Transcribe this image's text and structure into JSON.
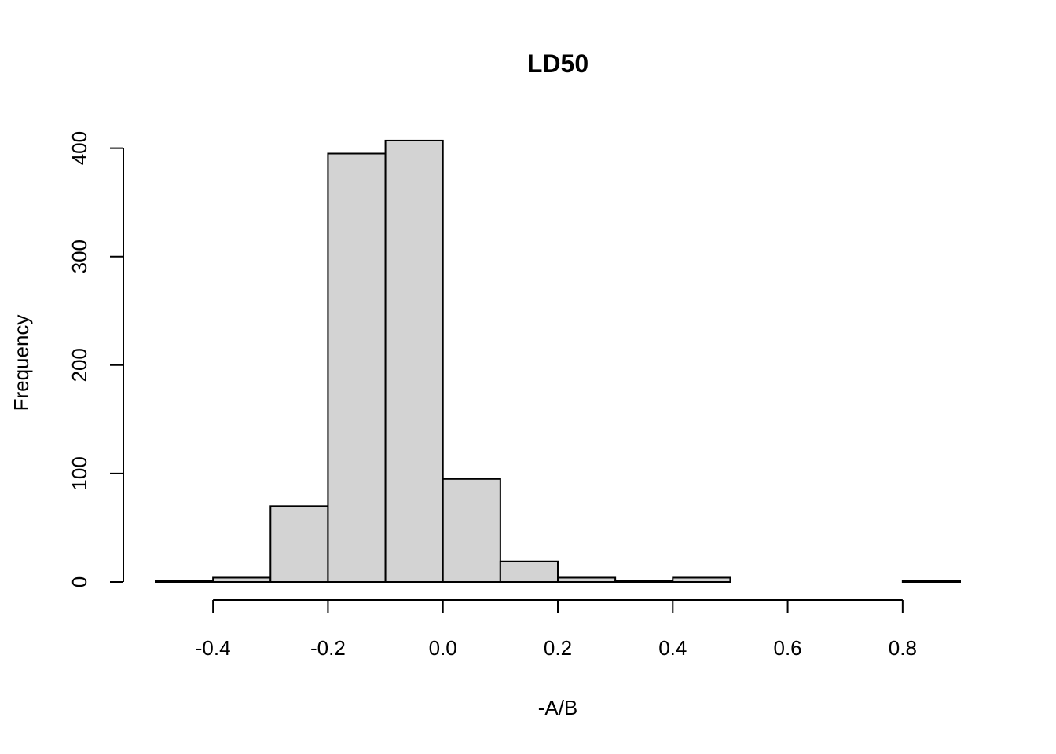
{
  "chart_data": {
    "type": "bar",
    "subtype": "histogram",
    "title": "LD50",
    "xlabel": "-A/B",
    "ylabel": "Frequency",
    "bins": [
      {
        "x0": -0.5,
        "x1": -0.4,
        "count": 1
      },
      {
        "x0": -0.4,
        "x1": -0.3,
        "count": 4
      },
      {
        "x0": -0.3,
        "x1": -0.2,
        "count": 70
      },
      {
        "x0": -0.2,
        "x1": -0.1,
        "count": 395
      },
      {
        "x0": -0.1,
        "x1": 0.0,
        "count": 407
      },
      {
        "x0": 0.0,
        "x1": 0.1,
        "count": 95
      },
      {
        "x0": 0.1,
        "x1": 0.2,
        "count": 19
      },
      {
        "x0": 0.2,
        "x1": 0.3,
        "count": 4
      },
      {
        "x0": 0.3,
        "x1": 0.4,
        "count": 1
      },
      {
        "x0": 0.4,
        "x1": 0.5,
        "count": 4
      },
      {
        "x0": 0.5,
        "x1": 0.6,
        "count": 0
      },
      {
        "x0": 0.6,
        "x1": 0.7,
        "count": 0
      },
      {
        "x0": 0.7,
        "x1": 0.8,
        "count": 0
      },
      {
        "x0": 0.8,
        "x1": 0.9,
        "count": 1
      }
    ],
    "xlim": [
      -0.5,
      0.9
    ],
    "ylim": [
      0,
      410
    ],
    "xticks": [
      -0.4,
      -0.2,
      0.0,
      0.2,
      0.4,
      0.6,
      0.8
    ],
    "xtick_labels": [
      "-0.4",
      "-0.2",
      "0.0",
      "0.2",
      "0.4",
      "0.6",
      "0.8"
    ],
    "yticks": [
      0,
      100,
      200,
      300,
      400
    ],
    "ytick_labels": [
      "0",
      "100",
      "200",
      "300",
      "400"
    ],
    "grid": false,
    "bar_color": "#d3d3d3",
    "edge_color": "#000000"
  }
}
